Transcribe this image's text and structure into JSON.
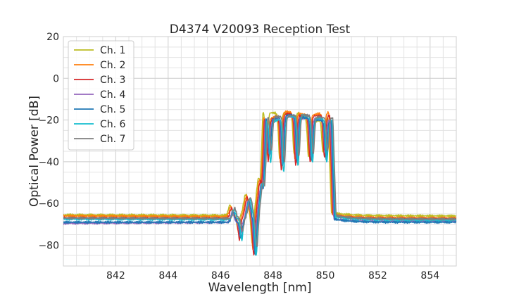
{
  "chart_data": {
    "type": "line",
    "title": "D4374 V20093 Reception Test",
    "xlabel": "Wavelength [nm]",
    "ylabel": "Optical Power [dB]",
    "xlim": [
      840,
      855
    ],
    "ylim": [
      -90,
      20
    ],
    "xticks": [
      842,
      844,
      846,
      848,
      850,
      852,
      854
    ],
    "yticks": [
      20,
      0,
      -20,
      -40,
      -60,
      -80
    ],
    "grid": true,
    "legend_position": "top-left",
    "series": [
      {
        "name": "Ch. 1",
        "color": "#bcbd22",
        "base_left": -65.5,
        "base_right": -66.0,
        "peaks": [
          -16.5,
          -17.0,
          -16.5,
          -21.0,
          -19.5
        ]
      },
      {
        "name": "Ch. 2",
        "color": "#ff7f0e",
        "base_left": -66.0,
        "base_right": -67.0,
        "peaks": [
          -19.0,
          -16.0,
          -17.0,
          -17.5,
          -16.5
        ]
      },
      {
        "name": "Ch. 3",
        "color": "#d62728",
        "base_left": -67.0,
        "base_right": -67.5,
        "peaks": [
          -19.5,
          -17.0,
          -18.0,
          -18.0,
          -18.0
        ]
      },
      {
        "name": "Ch. 4",
        "color": "#9467bd",
        "base_left": -69.5,
        "base_right": -68.5,
        "peaks": [
          -20.0,
          -18.0,
          -19.0,
          -19.5,
          -20.0
        ]
      },
      {
        "name": "Ch. 5",
        "color": "#1f77b4",
        "base_left": -69.0,
        "base_right": -69.0,
        "peaks": [
          -19.5,
          -17.5,
          -18.5,
          -20.0,
          -20.5
        ]
      },
      {
        "name": "Ch. 6",
        "color": "#17becf",
        "base_left": -67.5,
        "base_right": -68.0,
        "peaks": [
          -20.5,
          -18.5,
          -17.5,
          -19.0,
          -20.0
        ]
      },
      {
        "name": "Ch. 7",
        "color": "#7f7f7f",
        "base_left": -67.0,
        "base_right": -67.5,
        "peaks": [
          -18.5,
          -18.0,
          -17.5,
          -18.5,
          -19.0
        ]
      }
    ]
  }
}
